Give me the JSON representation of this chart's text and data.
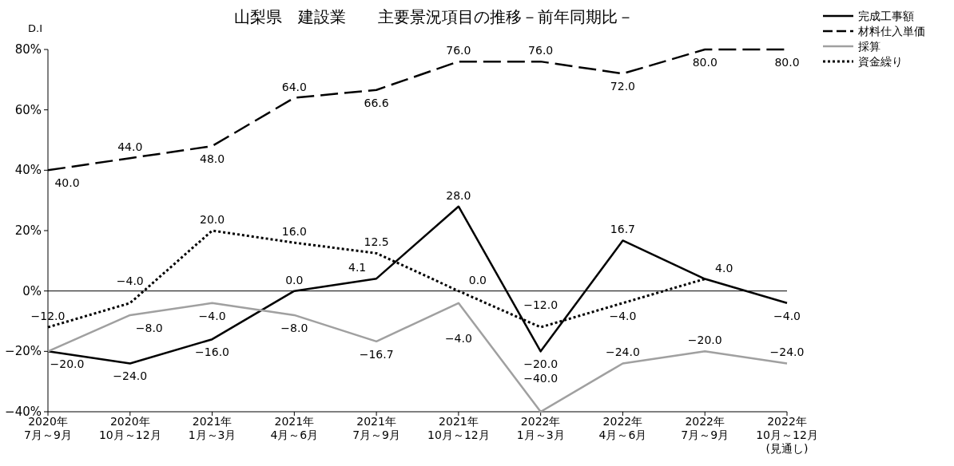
{
  "chart_data": {
    "type": "line",
    "title": "山梨県　建設業　　主要景況項目の推移－前年同期比－",
    "ylabel": "D.I",
    "categories": [
      "2020年\n7月～9月",
      "2020年\n10月～12月",
      "2021年\n1月～3月",
      "2021年\n4月～6月",
      "2021年\n7月～9月",
      "2021年\n10月～12月",
      "2022年\n1月～3月",
      "2022年\n4月～6月",
      "2022年\n7月～9月",
      "2022年\n10月～12月\n(見通し)"
    ],
    "series": [
      {
        "name": "完成工事額",
        "color": "#000000",
        "line_style": "solid",
        "values": [
          -20.0,
          -24.0,
          -16.0,
          0.0,
          4.1,
          28.0,
          -20.0,
          16.7,
          4.0,
          -4.0
        ],
        "value_labels": [
          "−20.0",
          "−24.0",
          "−16.0",
          "0.0",
          "4.1",
          "28.0",
          "−20.0",
          "16.7",
          null,
          "−4.0"
        ]
      },
      {
        "name": "材料仕入単価",
        "color": "#000000",
        "line_style": "dashed",
        "values": [
          40.0,
          44.0,
          48.0,
          64.0,
          66.6,
          76.0,
          76.0,
          72.0,
          80.0,
          80.0
        ],
        "value_labels": [
          "40.0",
          "44.0",
          "48.0",
          "64.0",
          "66.6",
          "76.0",
          "76.0",
          "72.0",
          "80.0",
          "80.0"
        ]
      },
      {
        "name": "採算",
        "color": "#a0a0a0",
        "line_style": "solid",
        "values": [
          -20.0,
          -8.0,
          -4.0,
          -8.0,
          -16.7,
          -4.0,
          -40.0,
          -24.0,
          -20.0,
          -24.0
        ],
        "value_labels": [
          null,
          "−8.0",
          "−4.0",
          "−8.0",
          "−16.7",
          "−4.0",
          "−40.0",
          "−24.0",
          "−20.0",
          "−24.0"
        ]
      },
      {
        "name": "資金繰り",
        "color": "#000000",
        "line_style": "dotted",
        "values": [
          -12.0,
          -4.0,
          20.0,
          16.0,
          12.5,
          0.0,
          -12.0,
          -4.0,
          4.0,
          null
        ],
        "value_labels": [
          "−12.0",
          "−4.0",
          "20.0",
          "16.0",
          "12.5",
          "0.0",
          "−12.0",
          "−4.0",
          "4.0",
          null
        ]
      }
    ],
    "ylim": [
      -40,
      80
    ],
    "yticks": [
      {
        "value": -40,
        "label": "−40%"
      },
      {
        "value": -20,
        "label": "−20%"
      },
      {
        "value": 0,
        "label": "0%"
      },
      {
        "value": 20,
        "label": "20%"
      },
      {
        "value": 40,
        "label": "40%"
      },
      {
        "value": 60,
        "label": "60%"
      },
      {
        "value": 80,
        "label": "80%"
      }
    ],
    "ref_lines": [
      {
        "axis": "y",
        "value": 0,
        "color": "#000000"
      }
    ],
    "legend": "top right",
    "grid": false,
    "marker": "none"
  }
}
